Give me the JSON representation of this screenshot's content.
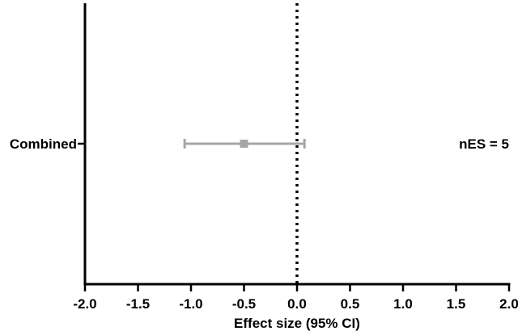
{
  "chart_data": {
    "type": "forest",
    "xlabel": "Effect size (95% CI)",
    "xlim": [
      -2.0,
      2.0
    ],
    "xticks": [
      "-2.0",
      "-1.5",
      "-1.0",
      "-0.5",
      "0.0",
      "0.5",
      "1.0",
      "1.5",
      "2.0"
    ],
    "reference_line": 0.0,
    "reference_line_style": "dotted",
    "grid": false,
    "rows": [
      {
        "label": "Combined",
        "estimate": -0.5,
        "ci_low": -1.06,
        "ci_high": 0.07,
        "annotation": "nES = 5"
      }
    ],
    "colors": {
      "estimate": "#a6a6a6",
      "axis": "#000000",
      "reference": "#000000"
    }
  }
}
